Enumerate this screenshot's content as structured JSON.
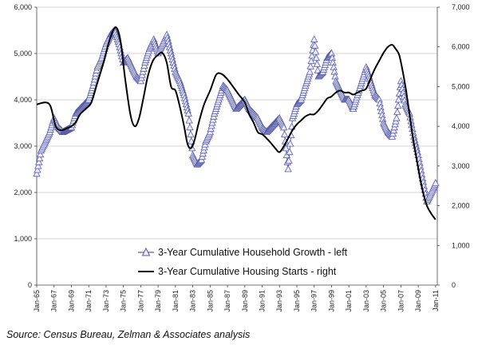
{
  "chart_data": {
    "type": "line",
    "x_tick_labels": [
      "Jan-65",
      "Jan-67",
      "Jan-69",
      "Jan-71",
      "Jan-73",
      "Jan-75",
      "Jan-77",
      "Jan-79",
      "Jan-81",
      "Jan-83",
      "Jan-85",
      "Jan-87",
      "Jan-89",
      "Jan-91",
      "Jan-93",
      "Jan-95",
      "Jan-97",
      "Jan-99",
      "Jan-01",
      "Jan-03",
      "Jan-05",
      "Jan-07",
      "Jan-09",
      "Jan-11"
    ],
    "x_range": [
      "Jan-65",
      "Jan-11"
    ],
    "y_left": {
      "ylim": [
        0,
        6000
      ],
      "ticks": [
        "0",
        "1,000",
        "2,000",
        "3,000",
        "4,000",
        "5,000",
        "6,000"
      ]
    },
    "y_right": {
      "ylim": [
        0,
        7000
      ],
      "ticks": [
        "0",
        "1,000",
        "2,000",
        "3,000",
        "4,000",
        "5,000",
        "6,000",
        "7,000"
      ]
    },
    "grid": "horizontal",
    "legend_position": "bottom-center",
    "series": [
      {
        "name": "3-Year Cumulative Household Growth - left",
        "axis": "left",
        "marker": "triangle",
        "color": "#5a5ea8",
        "x": [
          1965.0,
          1965.5,
          1966.0,
          1966.5,
          1967.0,
          1967.5,
          1968.0,
          1968.5,
          1969.0,
          1969.5,
          1970.0,
          1970.5,
          1971.0,
          1971.5,
          1972.0,
          1972.5,
          1973.0,
          1973.5,
          1974.0,
          1974.5,
          1975.0,
          1975.5,
          1976.0,
          1976.5,
          1977.0,
          1977.5,
          1978.0,
          1978.5,
          1979.0,
          1979.5,
          1980.0,
          1980.5,
          1981.0,
          1981.5,
          1982.0,
          1982.5,
          1983.0,
          1983.5,
          1984.0,
          1984.5,
          1985.0,
          1985.5,
          1986.0,
          1986.5,
          1987.0,
          1987.5,
          1988.0,
          1988.5,
          1989.0,
          1989.5,
          1990.0,
          1990.5,
          1991.0,
          1991.5,
          1992.0,
          1992.5,
          1993.0,
          1993.5,
          1994.0,
          1994.5,
          1995.0,
          1995.5,
          1996.0,
          1996.5,
          1997.0,
          1997.5,
          1998.0,
          1998.5,
          1999.0,
          1999.5,
          2000.0,
          2000.5,
          2001.0,
          2001.5,
          2002.0,
          2002.5,
          2003.0,
          2003.5,
          2004.0,
          2004.5,
          2005.0,
          2005.5,
          2006.0,
          2006.5,
          2007.0,
          2007.5,
          2008.0,
          2008.5,
          2009.0,
          2009.5,
          2010.0,
          2010.5,
          2011.0
        ],
        "values": [
          2400,
          2900,
          3100,
          3300,
          3600,
          3400,
          3300,
          3350,
          3400,
          3700,
          3800,
          3900,
          4000,
          4300,
          4700,
          4900,
          5200,
          5400,
          5500,
          5200,
          4800,
          4900,
          4700,
          4500,
          4400,
          4800,
          5100,
          5300,
          5000,
          5200,
          5400,
          5000,
          4600,
          4400,
          4100,
          3700,
          2800,
          2600,
          2700,
          3100,
          3300,
          3700,
          4000,
          4300,
          4200,
          4000,
          3800,
          3900,
          4000,
          3800,
          3700,
          3600,
          3400,
          3300,
          3400,
          3500,
          3600,
          3400,
          2500,
          3600,
          3900,
          4000,
          4300,
          4600,
          5300,
          4500,
          4600,
          4900,
          5000,
          4400,
          4200,
          4000,
          4000,
          3800,
          4100,
          4400,
          4700,
          4400,
          4100,
          4000,
          3500,
          3300,
          3200,
          3600,
          4400,
          3900,
          3700,
          3200,
          2800,
          2300,
          1800,
          2000,
          2200
        ]
      },
      {
        "name": "3-Year Cumulative Housing Starts - right",
        "axis": "right",
        "marker": "none",
        "color": "#000000",
        "x": [
          1965.0,
          1966.0,
          1966.6,
          1967.2,
          1967.8,
          1968.5,
          1969.0,
          1969.5,
          1970.0,
          1970.7,
          1971.3,
          1972.0,
          1972.7,
          1973.3,
          1973.9,
          1974.3,
          1974.7,
          1975.2,
          1975.8,
          1976.3,
          1976.8,
          1977.3,
          1977.8,
          1978.4,
          1979.0,
          1979.5,
          1980.0,
          1980.5,
          1981.0,
          1981.5,
          1982.0,
          1982.4,
          1982.8,
          1983.2,
          1983.7,
          1984.3,
          1985.0,
          1985.7,
          1986.3,
          1986.8,
          1987.3,
          1987.8,
          1988.3,
          1989.0,
          1989.5,
          1990.0,
          1990.5,
          1991.0,
          1991.5,
          1992.0,
          1992.5,
          1993.0,
          1993.5,
          1994.0,
          1994.5,
          1995.0,
          1995.5,
          1996.0,
          1996.5,
          1997.0,
          1997.5,
          1998.0,
          1998.5,
          1999.0,
          1999.5,
          2000.0,
          2000.5,
          2001.0,
          2001.5,
          2002.0,
          2002.5,
          2003.0,
          2003.5,
          2004.0,
          2004.5,
          2005.0,
          2005.5,
          2006.0,
          2006.4,
          2006.8,
          2007.2,
          2007.6,
          2008.0,
          2008.4,
          2008.8,
          2009.2,
          2009.6,
          2010.0,
          2010.5,
          2011.0
        ],
        "values": [
          4550,
          4600,
          4500,
          4000,
          3900,
          3950,
          4000,
          4100,
          4300,
          4450,
          4600,
          5100,
          5600,
          6100,
          6450,
          6450,
          6100,
          5200,
          4300,
          4000,
          4200,
          4700,
          5250,
          5650,
          5800,
          5850,
          5600,
          5000,
          4900,
          4500,
          4000,
          3550,
          3450,
          3650,
          4100,
          4550,
          4900,
          5300,
          5320,
          5230,
          5100,
          4950,
          4800,
          4600,
          4300,
          4100,
          3850,
          3800,
          3700,
          3580,
          3450,
          3350,
          3500,
          3700,
          3900,
          4050,
          4150,
          4250,
          4300,
          4300,
          4400,
          4550,
          4700,
          4750,
          4850,
          4900,
          4850,
          4850,
          4800,
          4850,
          4900,
          4950,
          5200,
          5450,
          5650,
          5850,
          6000,
          6050,
          5950,
          5800,
          5400,
          4900,
          4300,
          3700,
          3200,
          2700,
          2300,
          2000,
          1800,
          1650
        ]
      }
    ]
  },
  "legend": {
    "household": "3-Year Cumulative Household Growth - left",
    "starts": "3-Year Cumulative Housing Starts - right"
  },
  "source": "Source: Census Bureau, Zelman & Associates analysis"
}
